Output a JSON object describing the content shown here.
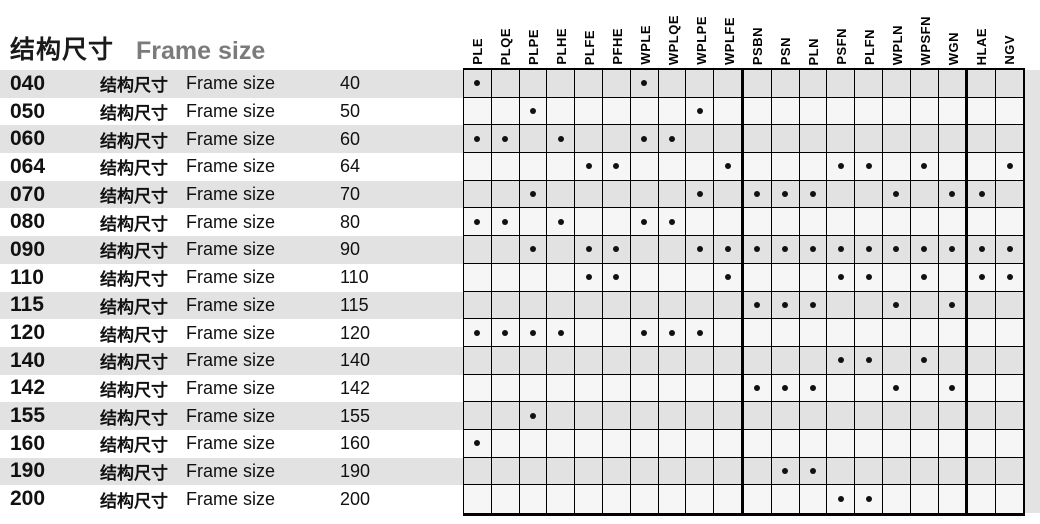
{
  "title": {
    "cn": "结构尺寸",
    "en": "Frame size"
  },
  "row_label": {
    "cn": "结构尺寸",
    "en": "Frame size"
  },
  "columns": [
    "PLE",
    "PLQE",
    "PLPE",
    "PLHE",
    "PLFE",
    "PFHE",
    "WPLE",
    "WPLQE",
    "WPLPE",
    "WPLFE",
    "PSBN",
    "PSN",
    "PLN",
    "PSFN",
    "PLFN",
    "WPLN",
    "WPSFN",
    "WGN",
    "HLAE",
    "NGV"
  ],
  "thick_border_after_columns": [
    "WPLFE",
    "WGN"
  ],
  "rows": [
    {
      "id": "040",
      "size": "40",
      "dots": [
        "PLE",
        "WPLE"
      ]
    },
    {
      "id": "050",
      "size": "50",
      "dots": [
        "PLPE",
        "WPLPE"
      ]
    },
    {
      "id": "060",
      "size": "60",
      "dots": [
        "PLE",
        "PLQE",
        "PLHE",
        "WPLE",
        "WPLQE"
      ]
    },
    {
      "id": "064",
      "size": "64",
      "dots": [
        "PLFE",
        "PFHE",
        "WPLFE",
        "PSFN",
        "PLFN",
        "WPSFN",
        "NGV"
      ]
    },
    {
      "id": "070",
      "size": "70",
      "dots": [
        "PLPE",
        "WPLPE",
        "PSBN",
        "PSN",
        "PLN",
        "WPLN",
        "WGN",
        "HLAE"
      ]
    },
    {
      "id": "080",
      "size": "80",
      "dots": [
        "PLE",
        "PLQE",
        "PLHE",
        "WPLE",
        "WPLQE"
      ]
    },
    {
      "id": "090",
      "size": "90",
      "dots": [
        "PLPE",
        "PLFE",
        "PFHE",
        "WPLPE",
        "WPLFE",
        "PSBN",
        "PSN",
        "PLN",
        "PSFN",
        "PLFN",
        "WPLN",
        "WPSFN",
        "WGN",
        "HLAE",
        "NGV"
      ]
    },
    {
      "id": "110",
      "size": "110",
      "dots": [
        "PLFE",
        "PFHE",
        "WPLFE",
        "PSFN",
        "PLFN",
        "WPSFN",
        "HLAE",
        "NGV"
      ]
    },
    {
      "id": "115",
      "size": "115",
      "dots": [
        "PSBN",
        "PSN",
        "PLN",
        "WPLN",
        "WGN"
      ]
    },
    {
      "id": "120",
      "size": "120",
      "dots": [
        "PLE",
        "PLQE",
        "PLPE",
        "PLHE",
        "WPLE",
        "WPLQE",
        "WPLPE"
      ]
    },
    {
      "id": "140",
      "size": "140",
      "dots": [
        "PSFN",
        "PLFN",
        "WPSFN"
      ]
    },
    {
      "id": "142",
      "size": "142",
      "dots": [
        "PSBN",
        "PSN",
        "PLN",
        "WPLN",
        "WGN"
      ]
    },
    {
      "id": "155",
      "size": "155",
      "dots": [
        "PLPE"
      ]
    },
    {
      "id": "160",
      "size": "160",
      "dots": [
        "PLE"
      ]
    },
    {
      "id": "190",
      "size": "190",
      "dots": [
        "PSN",
        "PLN"
      ]
    },
    {
      "id": "200",
      "size": "200",
      "dots": [
        "PSFN",
        "PLFN"
      ]
    }
  ],
  "colors": {
    "row_gray": "#e2e2e2",
    "row_light": "#f5f6f5",
    "left_row_light": "#ffffff",
    "grid_line": "#000000",
    "dot": "#111111",
    "title_en_gray": "#7b7b7b",
    "right_strip": "#e3e3e3"
  }
}
